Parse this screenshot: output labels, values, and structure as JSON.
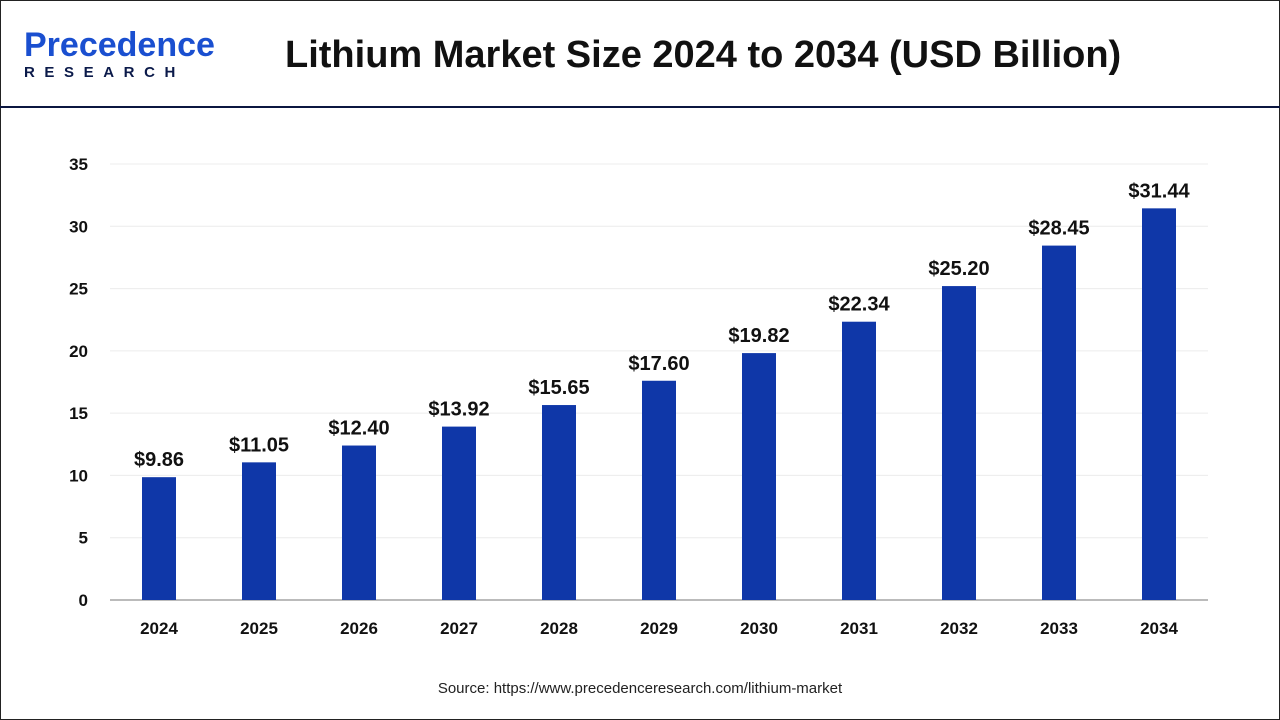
{
  "header": {
    "logo_text_top": "Precedence",
    "logo_text_bottom": "RESEARCH",
    "title": "Lithium Market Size 2024 to 2034 (USD Billion)"
  },
  "source": "Source: https://www.precedenceresearch.com/lithium-market",
  "chart_data": {
    "type": "bar",
    "title": "Lithium Market Size 2024 to 2034 (USD Billion)",
    "categories": [
      "2024",
      "2025",
      "2026",
      "2027",
      "2028",
      "2029",
      "2030",
      "2031",
      "2032",
      "2033",
      "2034"
    ],
    "values": [
      9.86,
      11.05,
      12.4,
      13.92,
      15.65,
      17.6,
      19.82,
      22.34,
      25.2,
      28.45,
      31.44
    ],
    "data_labels": [
      "$9.86",
      "$11.05",
      "$12.40",
      "$13.92",
      "$15.65",
      "$17.60",
      "$19.82",
      "$22.34",
      "$25.20",
      "$28.45",
      "$31.44"
    ],
    "yticks": [
      0,
      5,
      10,
      15,
      20,
      25,
      30,
      35
    ],
    "ylim": [
      0,
      35
    ],
    "grid": true,
    "bar_color": "#0f37a8",
    "xlabel": "",
    "ylabel": ""
  }
}
